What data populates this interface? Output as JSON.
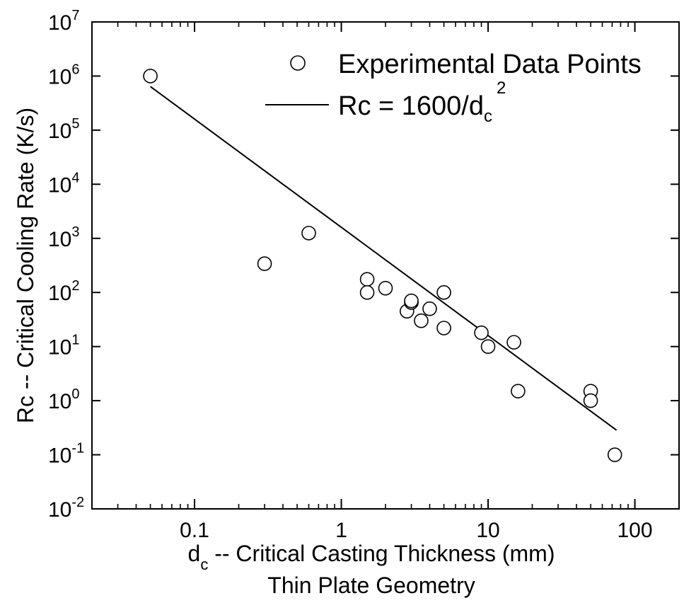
{
  "chart_data": {
    "type": "scatter",
    "x_scale": "log",
    "y_scale": "log",
    "xlim": [
      0.02,
      200
    ],
    "ylim": [
      0.01,
      10000000
    ],
    "x_ticks": [
      {
        "value": 0.1,
        "label": "0.1"
      },
      {
        "value": 1,
        "label": "1"
      },
      {
        "value": 10,
        "label": "10"
      },
      {
        "value": 100,
        "label": "100"
      }
    ],
    "y_ticks": [
      {
        "value": 0.01,
        "base": "10",
        "exp": "-2"
      },
      {
        "value": 0.1,
        "base": "10",
        "exp": "-1"
      },
      {
        "value": 1,
        "base": "10",
        "exp": "0"
      },
      {
        "value": 10,
        "base": "10",
        "exp": "1"
      },
      {
        "value": 100,
        "base": "10",
        "exp": "2"
      },
      {
        "value": 1000,
        "base": "10",
        "exp": "3"
      },
      {
        "value": 10000,
        "base": "10",
        "exp": "4"
      },
      {
        "value": 100000,
        "base": "10",
        "exp": "5"
      },
      {
        "value": 1000000,
        "base": "10",
        "exp": "6"
      },
      {
        "value": 10000000,
        "base": "10",
        "exp": "7"
      }
    ],
    "xlabel": {
      "main": "d",
      "sub": "c",
      "rest": " -- Critical Casting Thickness (mm)"
    },
    "xlabel2": "Thin Plate Geometry",
    "ylabel": "Rc -- Critical Cooling Rate (K/s)",
    "legend": {
      "position": "top-right",
      "points_label": "Experimental Data Points",
      "line_label": {
        "main": "Rc = 1600/d",
        "sub": "c",
        "sup": "2"
      }
    },
    "series": [
      {
        "kind": "points",
        "marker": "open-circle",
        "points": [
          {
            "x": 0.05,
            "y": 1000000
          },
          {
            "x": 0.3,
            "y": 340
          },
          {
            "x": 0.6,
            "y": 1250
          },
          {
            "x": 1.5,
            "y": 175
          },
          {
            "x": 1.5,
            "y": 100
          },
          {
            "x": 2.0,
            "y": 120
          },
          {
            "x": 2.8,
            "y": 45
          },
          {
            "x": 3.0,
            "y": 65
          },
          {
            "x": 3.0,
            "y": 70
          },
          {
            "x": 3.5,
            "y": 30
          },
          {
            "x": 4.0,
            "y": 50
          },
          {
            "x": 5.0,
            "y": 100
          },
          {
            "x": 5.0,
            "y": 22
          },
          {
            "x": 9.0,
            "y": 18
          },
          {
            "x": 10.0,
            "y": 10
          },
          {
            "x": 15.0,
            "y": 12
          },
          {
            "x": 16.0,
            "y": 1.5
          },
          {
            "x": 50.0,
            "y": 1.5
          },
          {
            "x": 50.0,
            "y": 1.0
          },
          {
            "x": 73.0,
            "y": 0.1
          }
        ]
      },
      {
        "kind": "line",
        "formula": "Rc = 1600/dc^2",
        "x_range": [
          0.05,
          75
        ]
      }
    ]
  }
}
